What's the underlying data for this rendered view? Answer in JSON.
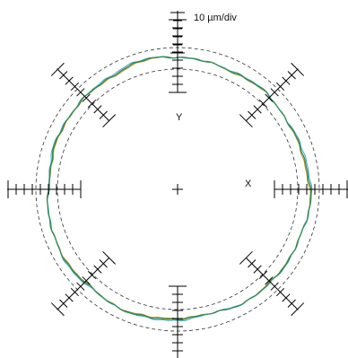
{
  "scale_label": "10 µm/div",
  "axes": {
    "y_label": "Y",
    "x_label": "X"
  },
  "colors": {
    "background": "#ffffff",
    "axis_lines": "#000000",
    "tolerance_circles": "#333333",
    "trace_primary": "#2e8b57",
    "trace_secondary": "#4aa3c7",
    "trace_tertiary": "#b8860b"
  }
}
